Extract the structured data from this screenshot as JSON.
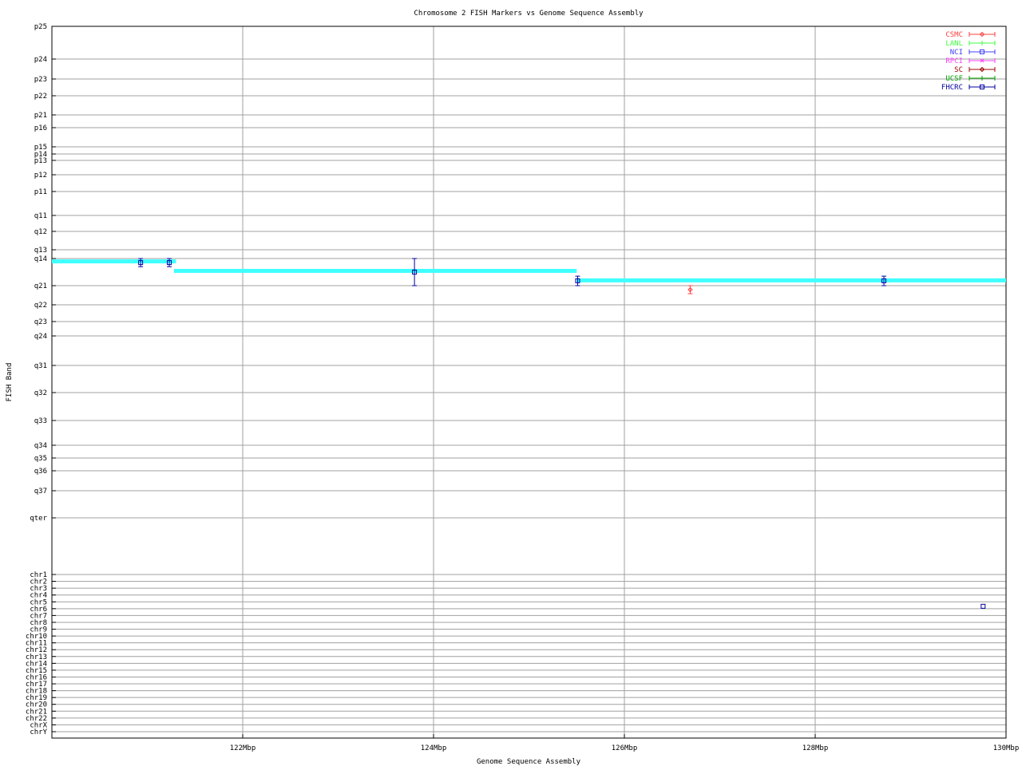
{
  "chart_data": {
    "type": "scatter",
    "title": "Chromosome 2 FISH Markers vs Genome Sequence Assembly",
    "xlabel": "Genome Sequence Assembly",
    "ylabel": "FISH Band",
    "xlim": [
      120,
      130
    ],
    "x_ticks": [
      {
        "value": 122,
        "label": "122Mbp"
      },
      {
        "value": 124,
        "label": "124Mbp"
      },
      {
        "value": 126,
        "label": "126Mbp"
      },
      {
        "value": 128,
        "label": "128Mbp"
      },
      {
        "value": 130,
        "label": "130Mbp"
      }
    ],
    "y_bands": [
      "p25",
      "p24",
      "p23",
      "p22",
      "p21",
      "p16",
      "p15",
      "p14",
      "p13",
      "p12",
      "p11",
      "q11",
      "q12",
      "q13",
      "q14",
      "q21",
      "q22",
      "q23",
      "q24",
      "q31",
      "q32",
      "q33",
      "q34",
      "q35",
      "q36",
      "q37",
      "qter"
    ],
    "y_chromosomes": [
      "chr1",
      "chr2",
      "chr3",
      "chr4",
      "chr5",
      "chr6",
      "chr7",
      "chr8",
      "chr9",
      "chr10",
      "chr11",
      "chr12",
      "chr13",
      "chr14",
      "chr15",
      "chr16",
      "chr17",
      "chr18",
      "chr19",
      "chr20",
      "chr21",
      "chr22",
      "chrX",
      "chrY"
    ],
    "grid": true,
    "legend_position": "top-right",
    "legend": [
      {
        "name": "CSMC",
        "color": "#ff4040",
        "marker": "diamond"
      },
      {
        "name": "LANL",
        "color": "#40ff40",
        "marker": "tick"
      },
      {
        "name": "NCI",
        "color": "#4040ff",
        "marker": "square"
      },
      {
        "name": "RPCI",
        "color": "#ff40ff",
        "marker": "cross"
      },
      {
        "name": "SC",
        "color": "#a00000",
        "marker": "diamond"
      },
      {
        "name": "UCSF",
        "color": "#00a000",
        "marker": "tick"
      },
      {
        "name": "FHCRC",
        "color": "#0000a0",
        "marker": "square"
      }
    ],
    "assembly_segments": {
      "color": "#40ffff",
      "segments": [
        {
          "x0": 120.0,
          "x1": 121.3,
          "band": "q14",
          "offset": 0.12
        },
        {
          "x0": 121.28,
          "x1": 125.5,
          "band": "q14",
          "offset": 0.47
        },
        {
          "x0": 125.5,
          "x1": 130.0,
          "band": "q14",
          "offset": 0.82
        }
      ]
    },
    "markers": [
      {
        "lab": "FHCRC",
        "x": 120.93,
        "band": "q14",
        "offset": 0.15,
        "err_lo": [
          "q14",
          0.0
        ],
        "err_hi": [
          "q14",
          0.3
        ]
      },
      {
        "lab": "FHCRC",
        "x": 121.23,
        "band": "q14",
        "offset": 0.15,
        "err_lo": [
          "q14",
          0.0
        ],
        "err_hi": [
          "q14",
          0.3
        ]
      },
      {
        "lab": "FHCRC",
        "x": 123.8,
        "band": "q14",
        "offset": 0.5,
        "err_lo": [
          "q14",
          0.0
        ],
        "err_hi": [
          "q21",
          0.0
        ]
      },
      {
        "lab": "FHCRC",
        "x": 125.51,
        "band": "q14",
        "offset": 0.82,
        "err_lo": [
          "q14",
          0.65
        ],
        "err_hi": [
          "q21",
          0.0
        ]
      },
      {
        "lab": "CSMC",
        "x": 126.69,
        "band": "q21",
        "offset": 0.21,
        "err_lo": [
          "q21",
          0.0
        ],
        "err_hi": [
          "q21",
          0.42
        ]
      },
      {
        "lab": "FHCRC",
        "x": 128.72,
        "band": "q14",
        "offset": 0.82,
        "err_lo": [
          "q14",
          0.65
        ],
        "err_hi": [
          "q21",
          0.0
        ]
      },
      {
        "lab": "FHCRC",
        "x": 129.76,
        "band": "chr5",
        "offset": 0.65
      }
    ]
  }
}
